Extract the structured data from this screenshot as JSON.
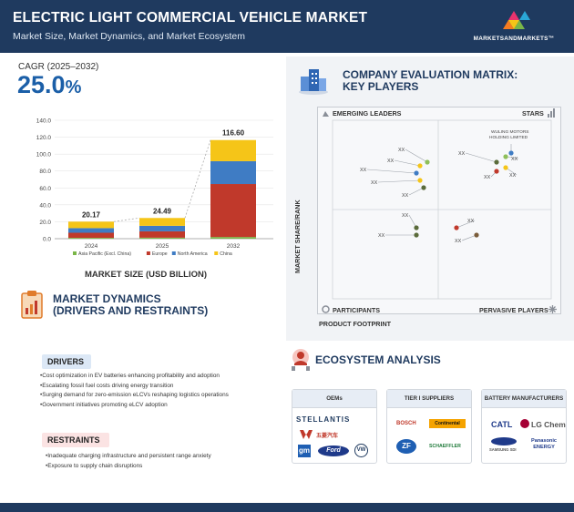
{
  "header": {
    "title": "ELECTRIC LIGHT COMMERCIAL VEHICLE MARKET",
    "subtitle": "Market Size, Market Dynamics, and Market Ecosystem",
    "logo_text": "MARKETSANDMARKETS™"
  },
  "cagr": {
    "label": "CAGR (2025–2032)",
    "value": "25.0",
    "unit": "%"
  },
  "chart_data": {
    "type": "bar",
    "stacked": true,
    "categories": [
      "2024",
      "2025",
      "2032"
    ],
    "totals": [
      20.17,
      24.49,
      116.6
    ],
    "total_labels": [
      "20.17",
      "24.49",
      "116.60"
    ],
    "series": [
      {
        "name": "Asia Pacific (Excl. China)",
        "color": "#7ab648",
        "values": [
          1.0,
          1.2,
          2.0
        ]
      },
      {
        "name": "Europe",
        "color": "#c0392b",
        "values": [
          6.0,
          7.5,
          62.6
        ]
      },
      {
        "name": "North America",
        "color": "#3f7cc4",
        "values": [
          5.5,
          6.5,
          27.0
        ]
      },
      {
        "name": "China",
        "color": "#f5c518",
        "values": [
          7.67,
          9.29,
          25.0
        ]
      }
    ],
    "yticks": [
      "140.0",
      "120.0",
      "100.0",
      "80.0",
      "60.0",
      "40.0",
      "20.0",
      "0.0"
    ],
    "ylim": [
      0,
      140
    ],
    "xlabel": "MARKET SIZE (USD BILLION)",
    "legend_position": "bottom"
  },
  "dynamics": {
    "title_line1": "MARKET DYNAMICS",
    "title_line2": "(DRIVERS AND RESTRAINTS)",
    "drivers_label": "DRIVERS",
    "drivers": [
      "Cost optimization in EV batteries enhancing profitability and adoption",
      "Escalating fossil fuel costs driving energy transition",
      "Surging demand for zero-emission eLCVs reshaping logistics operations",
      "Government initiatives promoting eLCV adoption"
    ],
    "restraints_label": "RESTRAINTS",
    "restraints": [
      "Inadequate charging infrastructure and persistent range anxiety",
      "Exposure to supply chain disruptions"
    ]
  },
  "matrix": {
    "title_line1": "COMPANY EVALUATION MATRIX:",
    "title_line2": "KEY PLAYERS",
    "q_emerging": "EMERGING LEADERS",
    "q_stars": "STARS",
    "q_participants": "PARTICIPANTS",
    "q_pervasive": "PERVASIVE PLAYERS",
    "y_axis": "MARKET SHARE/RANK",
    "x_axis": "PRODUCT FOOTPRINT",
    "highlight_line1": "WULING MOTORS",
    "highlight_line2": "HOLDING LIMITED",
    "placeholder": "XX",
    "dot_colors": [
      "#8fbf5a",
      "#3f7cc4",
      "#f5c518",
      "#c0392b",
      "#5a6b3a",
      "#7a5c3a"
    ]
  },
  "ecosystem": {
    "title": "ECOSYSTEM ANALYSIS",
    "cards": [
      {
        "label": "OEMs",
        "brands": [
          "STELLANTIS",
          "五菱汽车",
          "gm",
          "Ford",
          "VW"
        ]
      },
      {
        "label": "TIER I SUPPLIERS",
        "brands": [
          "BOSCH",
          "Continental",
          "ZF",
          "SCHAEFFLER"
        ]
      },
      {
        "label": "BATTERY MANUFACTURERS",
        "brands": [
          "CATL",
          "LG Chem",
          "SAMSUNG SDI",
          "Panasonic ENERGY"
        ]
      }
    ]
  }
}
